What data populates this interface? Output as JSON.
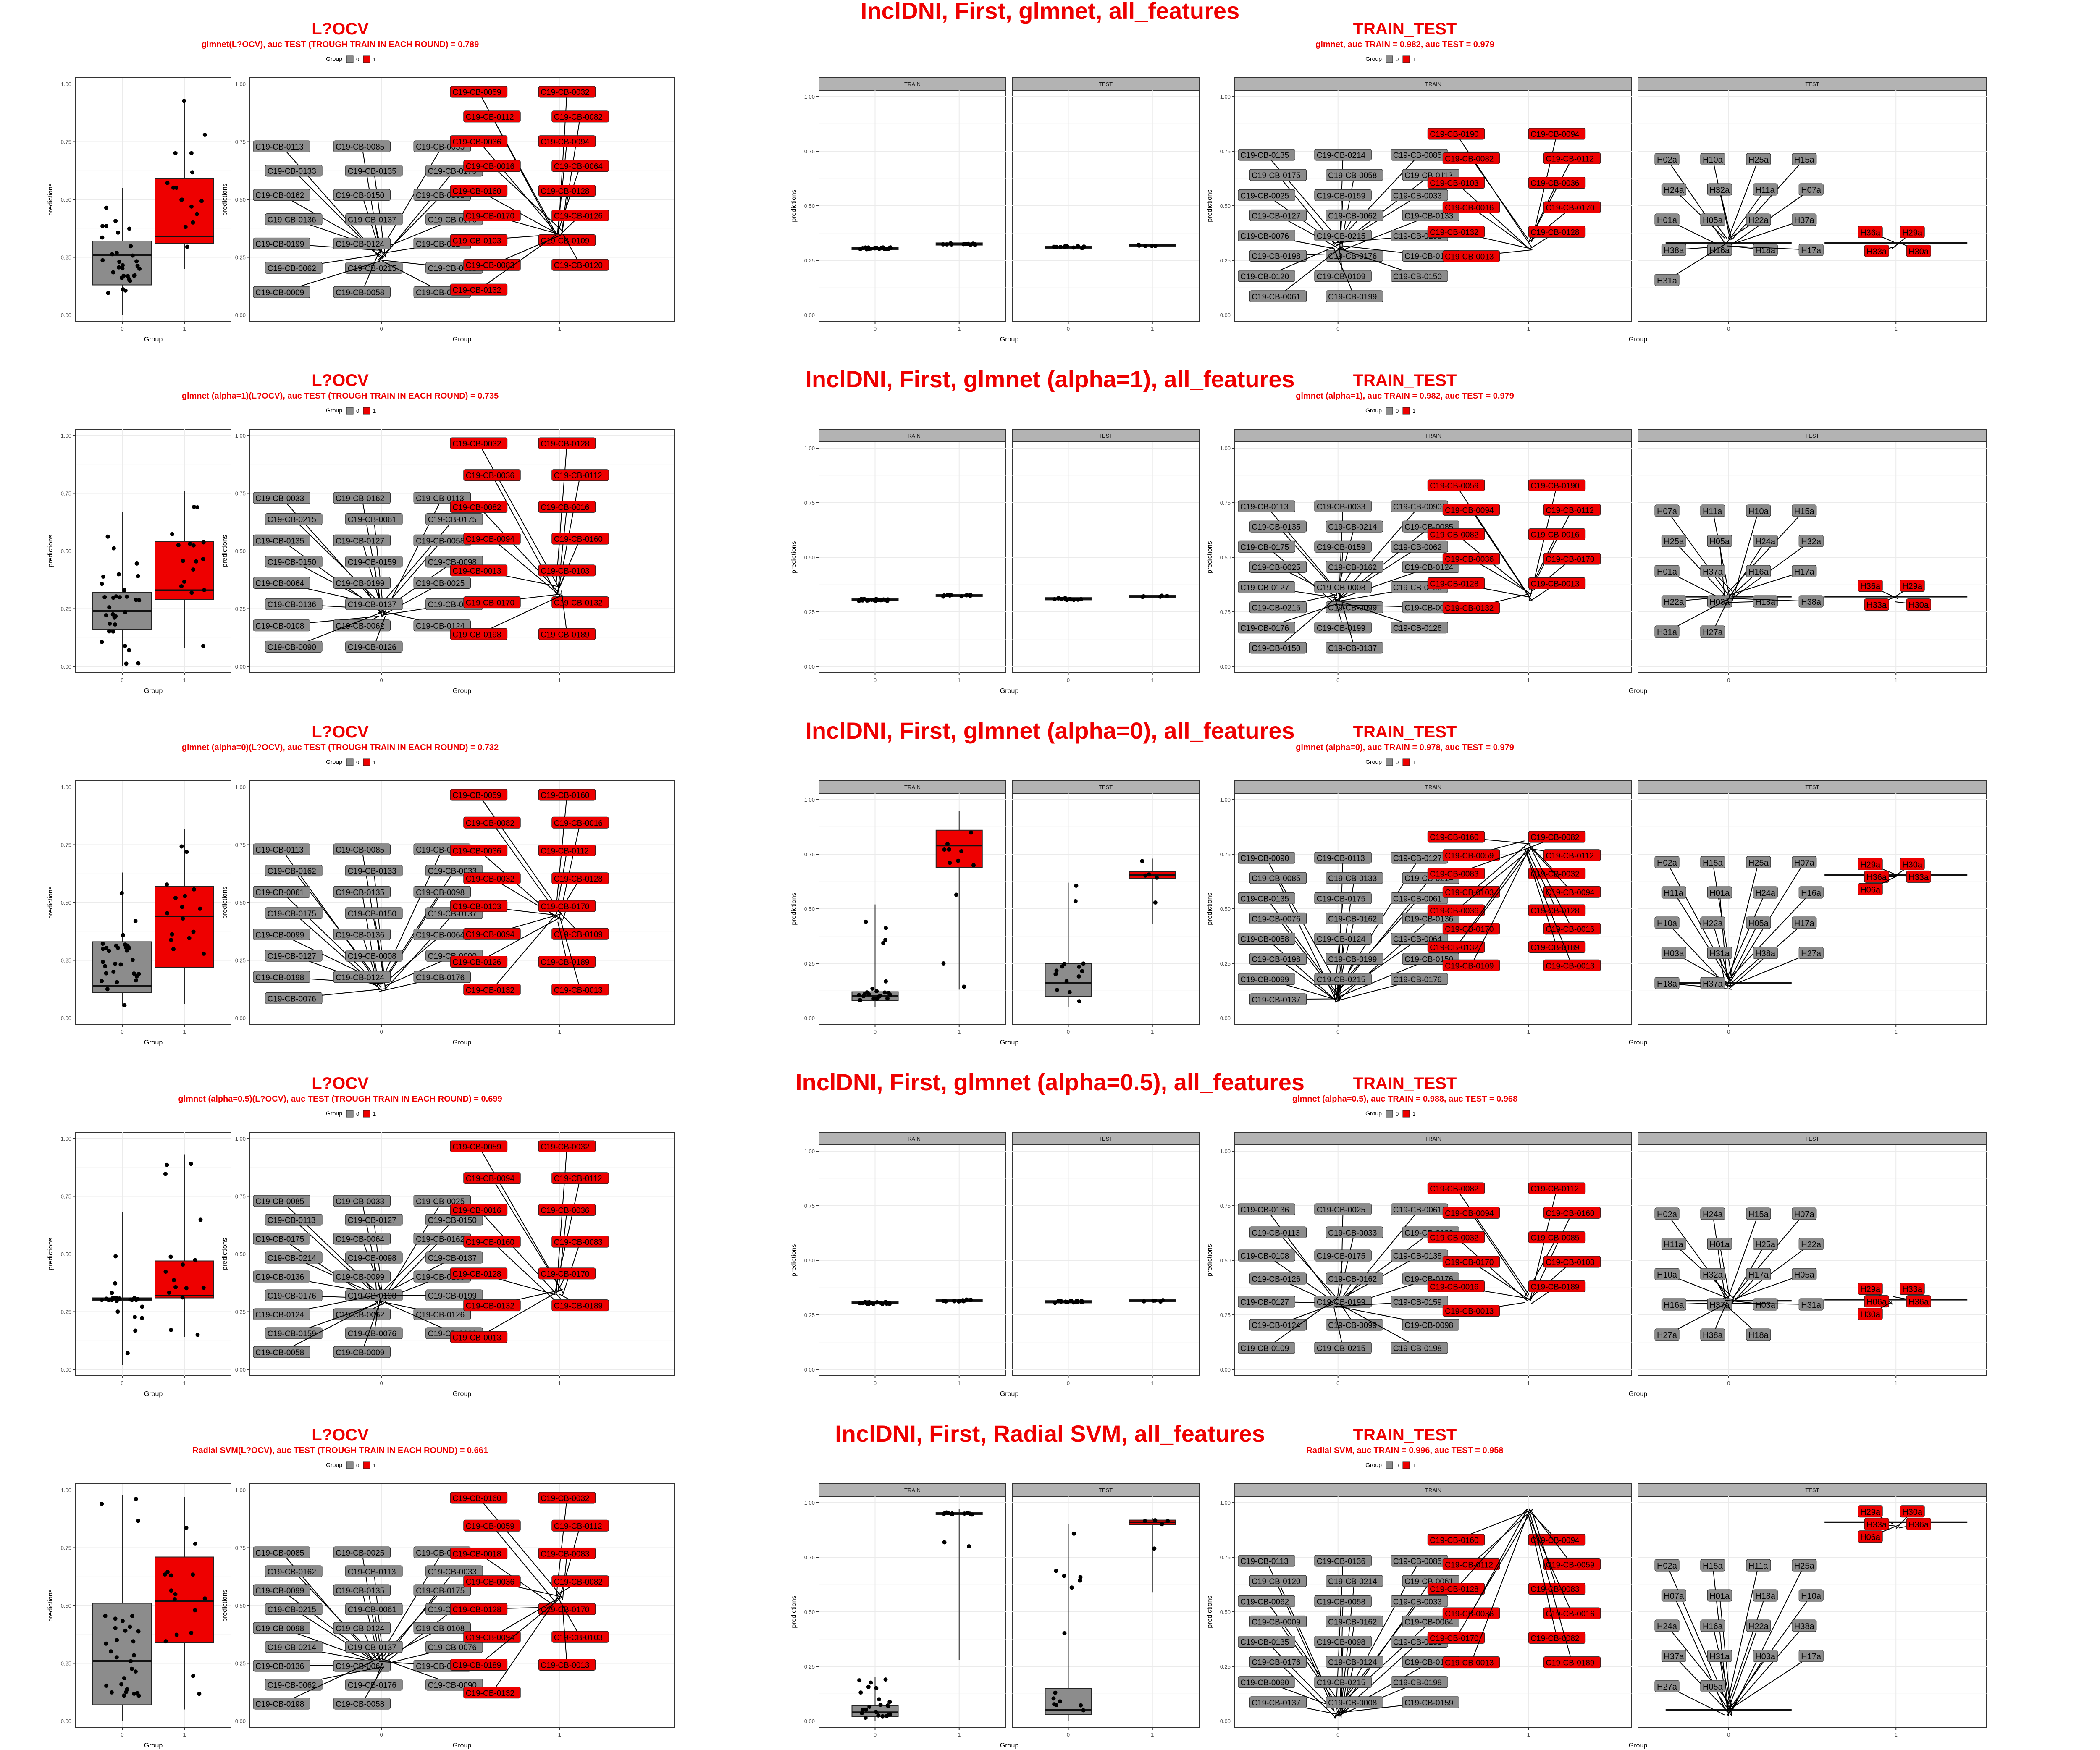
{
  "colors": {
    "g0": "#8c8c8c",
    "g1": "#ee0000",
    "title": "#ee0000",
    "grid": "#ebebeb",
    "strip": "#b3b3b3"
  },
  "legend": {
    "title": "Group",
    "key0": "0",
    "key1": "1"
  },
  "axis": {
    "ylabel": "predictions",
    "xlabel": "Group",
    "yticks": [
      "0.00",
      "0.25",
      "0.50",
      "0.75",
      "1.00"
    ],
    "xticks": [
      "0",
      "1"
    ]
  },
  "strips": {
    "train": "TRAIN",
    "test": "TEST"
  },
  "chart_data": [
    {
      "type": "box",
      "row_title": "InclDNI, First, glmnet, all_features",
      "loocv": {
        "title": "L?OCV",
        "subtitle": "glmnet(L?OCV), auc TEST (TROUGH TRAIN IN EACH ROUND) = 0.789",
        "box0": {
          "q1": 0.13,
          "median": 0.26,
          "q3": 0.32,
          "whisk_lo": 0.0,
          "whisk_hi": 0.55
        },
        "box1": {
          "q1": 0.31,
          "median": 0.34,
          "q3": 0.59,
          "whisk_lo": 0.2,
          "whisk_hi": 0.93
        },
        "labels0": [
          "C19-CB-0113",
          "C19-CB-0085",
          "C19-CB-0033",
          "C19-CB-0133",
          "C19-CB-0135",
          "C19-CB-0175",
          "C19-CB-0162",
          "C19-CB-0150",
          "C19-CB-0098",
          "C19-CB-0136",
          "C19-CB-0137",
          "C19-CB-0176",
          "C19-CB-0199",
          "C19-CB-0124",
          "C19-CB-0127",
          "C19-CB-0062",
          "C19-CB-0215",
          "C19-CB-0008",
          "C19-CB-0009",
          "C19-CB-0058",
          "C19-CB-0076"
        ],
        "labels1": [
          "C19-CB-0059",
          "C19-CB-0032",
          "C19-CB-0112",
          "C19-CB-0082",
          "C19-CB-0036",
          "C19-CB-0094",
          "C19-CB-0016",
          "C19-CB-0064",
          "C19-CB-0160",
          "C19-CB-0128",
          "C19-CB-0170",
          "C19-CB-0126",
          "C19-CB-0103",
          "C19-CB-0109",
          "C19-CB-0083",
          "C19-CB-0120",
          "C19-CB-0132"
        ]
      },
      "tt": {
        "title": "TRAIN_TEST",
        "subtitle": "glmnet, auc TRAIN = 0.982, auc TEST = 0.979",
        "train": {
          "box0": {
            "q1": 0.3,
            "median": 0.305,
            "q3": 0.31
          },
          "box1": {
            "q1": 0.32,
            "median": 0.325,
            "q3": 0.33
          }
        },
        "test": {
          "box0": {
            "q1": 0.305,
            "median": 0.31,
            "q3": 0.315
          },
          "box1": {
            "q1": 0.315,
            "median": 0.32,
            "q3": 0.325
          }
        },
        "train_labels0": [
          "C19-CB-0135",
          "C19-CB-0214",
          "C19-CB-0085",
          "C19-CB-0175",
          "C19-CB-0058",
          "C19-CB-0113",
          "C19-CB-0025",
          "C19-CB-0159",
          "C19-CB-0033",
          "C19-CB-0127",
          "C19-CB-0062",
          "C19-CB-0133",
          "C19-CB-0076",
          "C19-CB-0215",
          "C19-CB-0108",
          "C19-CB-0198",
          "C19-CB-0176",
          "C19-CB-0126",
          "C19-CB-0120",
          "C19-CB-0109",
          "C19-CB-0150",
          "C19-CB-0061",
          "C19-CB-0199"
        ],
        "train_labels1": [
          "C19-CB-0190",
          "C19-CB-0094",
          "C19-CB-0082",
          "C19-CB-0112",
          "C19-CB-0103",
          "C19-CB-0036",
          "C19-CB-0016",
          "C19-CB-0170",
          "C19-CB-0132",
          "C19-CB-0128",
          "C19-CB-0013"
        ],
        "test_labels0": [
          "H02a",
          "H10a",
          "H25a",
          "H15a",
          "H24a",
          "H32a",
          "H11a",
          "H07a",
          "H01a",
          "H05a",
          "H22a",
          "H37a",
          "H38a",
          "H16a",
          "H18a",
          "H17a",
          "H31a"
        ],
        "test_labels1": [
          "H36a",
          "H29a",
          "H33a",
          "H30a"
        ],
        "test_box0": {
          "median": 0.33
        },
        "test_box1": {
          "median": 0.33
        }
      }
    },
    {
      "type": "box",
      "row_title": "InclDNI, First, glmnet (alpha=1), all_features",
      "loocv": {
        "title": "L?OCV",
        "subtitle": "glmnet (alpha=1)(L?OCV), auc TEST (TROUGH TRAIN IN EACH ROUND) = 0.735",
        "box0": {
          "q1": 0.16,
          "median": 0.24,
          "q3": 0.32,
          "whisk_lo": 0.0,
          "whisk_hi": 0.67
        },
        "box1": {
          "q1": 0.29,
          "median": 0.33,
          "q3": 0.54,
          "whisk_lo": 0.08,
          "whisk_hi": 0.76
        },
        "labels0": [
          "C19-CB-0033",
          "C19-CB-0162",
          "C19-CB-0113",
          "C19-CB-0215",
          "C19-CB-0061",
          "C19-CB-0175",
          "C19-CB-0135",
          "C19-CB-0127",
          "C19-CB-0058",
          "C19-CB-0150",
          "C19-CB-0159",
          "C19-CB-0098",
          "C19-CB-0064",
          "C19-CB-0199",
          "C19-CB-0025",
          "C19-CB-0136",
          "C19-CB-0137",
          "C19-CB-0076",
          "C19-CB-0108",
          "C19-CB-0062",
          "C19-CB-0124",
          "C19-CB-0090",
          "C19-CB-0126"
        ],
        "labels1": [
          "C19-CB-0032",
          "C19-CB-0128",
          "C19-CB-0036",
          "C19-CB-0112",
          "C19-CB-0082",
          "C19-CB-0016",
          "C19-CB-0094",
          "C19-CB-0160",
          "C19-CB-0013",
          "C19-CB-0103",
          "C19-CB-0170",
          "C19-CB-0132",
          "C19-CB-0198",
          "C19-CB-0189"
        ]
      },
      "tt": {
        "title": "TRAIN_TEST",
        "subtitle": "glmnet (alpha=1), auc TRAIN = 0.982, auc TEST = 0.979",
        "train": {
          "box0": {
            "q1": 0.3,
            "median": 0.305,
            "q3": 0.31
          },
          "box1": {
            "q1": 0.32,
            "median": 0.325,
            "q3": 0.33
          }
        },
        "test": {
          "box0": {
            "q1": 0.305,
            "median": 0.31,
            "q3": 0.315
          },
          "box1": {
            "q1": 0.315,
            "median": 0.32,
            "q3": 0.325
          }
        },
        "train_labels0": [
          "C19-CB-0113",
          "C19-CB-0033",
          "C19-CB-0090",
          "C19-CB-0135",
          "C19-CB-0214",
          "C19-CB-0085",
          "C19-CB-0175",
          "C19-CB-0159",
          "C19-CB-0062",
          "C19-CB-0025",
          "C19-CB-0162",
          "C19-CB-0124",
          "C19-CB-0127",
          "C19-CB-0008",
          "C19-CB-0198",
          "C19-CB-0215",
          "C19-CB-0099",
          "C19-CB-0064",
          "C19-CB-0176",
          "C19-CB-0199",
          "C19-CB-0126",
          "C19-CB-0150",
          "C19-CB-0137"
        ],
        "train_labels1": [
          "C19-CB-0059",
          "C19-CB-0190",
          "C19-CB-0094",
          "C19-CB-0112",
          "C19-CB-0082",
          "C19-CB-0016",
          "C19-CB-0036",
          "C19-CB-0170",
          "C19-CB-0128",
          "C19-CB-0013",
          "C19-CB-0132"
        ],
        "test_labels0": [
          "H07a",
          "H11a",
          "H10a",
          "H15a",
          "H25a",
          "H05a",
          "H24a",
          "H32a",
          "H01a",
          "H37a",
          "H16a",
          "H17a",
          "H22a",
          "H03a",
          "H18a",
          "H38a",
          "H31a",
          "H27a"
        ],
        "test_labels1": [
          "H36a",
          "H29a",
          "H33a",
          "H30a"
        ],
        "test_box0": {
          "median": 0.32
        },
        "test_box1": {
          "median": 0.32
        }
      }
    },
    {
      "type": "box",
      "row_title": "InclDNI, First, glmnet (alpha=0), all_features",
      "loocv": {
        "title": "L?OCV",
        "subtitle": "glmnet (alpha=0)(L?OCV), auc TEST (TROUGH TRAIN IN EACH ROUND) = 0.732",
        "box0": {
          "q1": 0.11,
          "median": 0.14,
          "q3": 0.33,
          "whisk_lo": 0.05,
          "whisk_hi": 0.63
        },
        "box1": {
          "q1": 0.22,
          "median": 0.44,
          "q3": 0.57,
          "whisk_lo": 0.06,
          "whisk_hi": 0.82
        },
        "labels0": [
          "C19-CB-0113",
          "C19-CB-0085",
          "C19-CB-0025",
          "C19-CB-0162",
          "C19-CB-0133",
          "C19-CB-0033",
          "C19-CB-0061",
          "C19-CB-0135",
          "C19-CB-0098",
          "C19-CB-0175",
          "C19-CB-0150",
          "C19-CB-0137",
          "C19-CB-0099",
          "C19-CB-0136",
          "C19-CB-0064",
          "C19-CB-0127",
          "C19-CB-0008",
          "C19-CB-0090",
          "C19-CB-0198",
          "C19-CB-0124",
          "C19-CB-0176",
          "C19-CB-0076"
        ],
        "labels1": [
          "C19-CB-0059",
          "C19-CB-0160",
          "C19-CB-0082",
          "C19-CB-0016",
          "C19-CB-0036",
          "C19-CB-0112",
          "C19-CB-0032",
          "C19-CB-0128",
          "C19-CB-0103",
          "C19-CB-0170",
          "C19-CB-0094",
          "C19-CB-0109",
          "C19-CB-0126",
          "C19-CB-0189",
          "C19-CB-0132",
          "C19-CB-0013"
        ]
      },
      "tt": {
        "title": "TRAIN_TEST",
        "subtitle": "glmnet (alpha=0), auc TRAIN = 0.978, auc TEST = 0.979",
        "train": {
          "box0": {
            "q1": 0.08,
            "median": 0.1,
            "q3": 0.12,
            "whisk_lo": 0.05,
            "whisk_hi": 0.52
          },
          "box1": {
            "q1": 0.69,
            "median": 0.79,
            "q3": 0.86,
            "whisk_lo": 0.13,
            "whisk_hi": 0.95
          }
        },
        "test": {
          "box0": {
            "q1": 0.1,
            "median": 0.16,
            "q3": 0.25,
            "whisk_lo": 0.05,
            "whisk_hi": 0.62
          },
          "box1": {
            "q1": 0.64,
            "median": 0.655,
            "q3": 0.67,
            "whisk_lo": 0.43,
            "whisk_hi": 0.73
          }
        },
        "train_labels0": [
          "C19-CB-0090",
          "C19-CB-0113",
          "C19-CB-0127",
          "C19-CB-0085",
          "C19-CB-0133",
          "C19-CB-0214",
          "C19-CB-0135",
          "C19-CB-0175",
          "C19-CB-0061",
          "C19-CB-0076",
          "C19-CB-0162",
          "C19-CB-0136",
          "C19-CB-0058",
          "C19-CB-0124",
          "C19-CB-0064",
          "C19-CB-0198",
          "C19-CB-0199",
          "C19-CB-0150",
          "C19-CB-0099",
          "C19-CB-0215",
          "C19-CB-0176",
          "C19-CB-0137"
        ],
        "train_labels1": [
          "C19-CB-0160",
          "C19-CB-0082",
          "C19-CB-0059",
          "C19-CB-0112",
          "C19-CB-0083",
          "C19-CB-0032",
          "C19-CB-0103",
          "C19-CB-0094",
          "C19-CB-0036",
          "C19-CB-0128",
          "C19-CB-0170",
          "C19-CB-0016",
          "C19-CB-0132",
          "C19-CB-0189",
          "C19-CB-0109",
          "C19-CB-0013"
        ],
        "test_labels0": [
          "H02a",
          "H15a",
          "H25a",
          "H07a",
          "H11a",
          "H01a",
          "H24a",
          "H16a",
          "H10a",
          "H22a",
          "H05a",
          "H17a",
          "H03a",
          "H31a",
          "H38a",
          "H27a",
          "H18a",
          "H37a"
        ],
        "test_labels1": [
          "H29a",
          "H30a",
          "H36a",
          "H33a",
          "H06a"
        ]
      }
    },
    {
      "type": "box",
      "row_title": "InclDNI, First, glmnet (alpha=0.5), all_features",
      "loocv": {
        "title": "L?OCV",
        "subtitle": "glmnet (alpha=0.5)(L?OCV), auc TEST (TROUGH TRAIN IN EACH ROUND) = 0.699",
        "box0": {
          "q1": 0.3,
          "median": 0.305,
          "q3": 0.31,
          "whisk_lo": 0.02,
          "whisk_hi": 0.68
        },
        "box1": {
          "q1": 0.31,
          "median": 0.32,
          "q3": 0.47,
          "whisk_lo": 0.14,
          "whisk_hi": 0.93
        },
        "labels0": [
          "C19-CB-0085",
          "C19-CB-0033",
          "C19-CB-0025",
          "C19-CB-0113",
          "C19-CB-0127",
          "C19-CB-0150",
          "C19-CB-0175",
          "C19-CB-0064",
          "C19-CB-0162",
          "C19-CB-0214",
          "C19-CB-0098",
          "C19-CB-0137",
          "C19-CB-0136",
          "C19-CB-0099",
          "C19-CB-0108",
          "C19-CB-0176",
          "C19-CB-0198",
          "C19-CB-0199",
          "C19-CB-0124",
          "C19-CB-0062",
          "C19-CB-0126",
          "C19-CB-0159",
          "C19-CB-0076",
          "C19-CB-0008",
          "C19-CB-0058",
          "C19-CB-0009"
        ],
        "labels1": [
          "C19-CB-0059",
          "C19-CB-0032",
          "C19-CB-0094",
          "C19-CB-0112",
          "C19-CB-0016",
          "C19-CB-0036",
          "C19-CB-0160",
          "C19-CB-0083",
          "C19-CB-0128",
          "C19-CB-0170",
          "C19-CB-0132",
          "C19-CB-0189",
          "C19-CB-0013"
        ]
      },
      "tt": {
        "title": "TRAIN_TEST",
        "subtitle": "glmnet (alpha=0.5), auc TRAIN = 0.988, auc TEST = 0.968",
        "train": {
          "box0": {
            "q1": 0.3,
            "median": 0.305,
            "q3": 0.31
          },
          "box1": {
            "q1": 0.31,
            "median": 0.315,
            "q3": 0.32
          }
        },
        "test": {
          "box0": {
            "q1": 0.305,
            "median": 0.31,
            "q3": 0.315
          },
          "box1": {
            "q1": 0.31,
            "median": 0.315,
            "q3": 0.32
          }
        },
        "train_labels0": [
          "C19-CB-0136",
          "C19-CB-0025",
          "C19-CB-0061",
          "C19-CB-0113",
          "C19-CB-0033",
          "C19-CB-0133",
          "C19-CB-0108",
          "C19-CB-0175",
          "C19-CB-0135",
          "C19-CB-0126",
          "C19-CB-0162",
          "C19-CB-0176",
          "C19-CB-0127",
          "C19-CB-0199",
          "C19-CB-0159",
          "C19-CB-0124",
          "C19-CB-0099",
          "C19-CB-0098",
          "C19-CB-0109",
          "C19-CB-0215",
          "C19-CB-0198"
        ],
        "train_labels1": [
          "C19-CB-0082",
          "C19-CB-0112",
          "C19-CB-0094",
          "C19-CB-0160",
          "C19-CB-0032",
          "C19-CB-0085",
          "C19-CB-0170",
          "C19-CB-0103",
          "C19-CB-0016",
          "C19-CB-0189",
          "C19-CB-0013"
        ],
        "test_labels0": [
          "H02a",
          "H24a",
          "H15a",
          "H07a",
          "H11a",
          "H01a",
          "H25a",
          "H22a",
          "H10a",
          "H32a",
          "H17a",
          "H05a",
          "H16a",
          "H37a",
          "H03a",
          "H31a",
          "H27a",
          "H38a",
          "H18a"
        ],
        "test_labels1": [
          "H29a",
          "H33a",
          "H06a",
          "H36a",
          "H30a"
        ],
        "test_box0": {
          "median": 0.315
        },
        "test_box1": {
          "median": 0.32
        }
      }
    },
    {
      "type": "box",
      "row_title": "InclDNI, First, Radial SVM, all_features",
      "loocv": {
        "title": "L?OCV",
        "subtitle": "Radial SVM(L?OCV), auc TEST (TROUGH TRAIN IN EACH ROUND) = 0.661",
        "box0": {
          "q1": 0.07,
          "median": 0.26,
          "q3": 0.51,
          "whisk_lo": 0.0,
          "whisk_hi": 0.98
        },
        "box1": {
          "q1": 0.34,
          "median": 0.52,
          "q3": 0.71,
          "whisk_lo": 0.05,
          "whisk_hi": 0.97
        },
        "labels0": [
          "C19-CB-0085",
          "C19-CB-0025",
          "C19-CB-0133",
          "C19-CB-0162",
          "C19-CB-0113",
          "C19-CB-0033",
          "C19-CB-0099",
          "C19-CB-0135",
          "C19-CB-0175",
          "C19-CB-0215",
          "C19-CB-0061",
          "C19-CB-0126",
          "C19-CB-0098",
          "C19-CB-0124",
          "C19-CB-0108",
          "C19-CB-0214",
          "C19-CB-0137",
          "C19-CB-0076",
          "C19-CB-0136",
          "C19-CB-0064",
          "C19-CB-0008",
          "C19-CB-0062",
          "C19-CB-0176",
          "C19-CB-0090",
          "C19-CB-0198",
          "C19-CB-0058"
        ],
        "labels1": [
          "C19-CB-0160",
          "C19-CB-0032",
          "C19-CB-0059",
          "C19-CB-0112",
          "C19-CB-0018",
          "C19-CB-0083",
          "C19-CB-0036",
          "C19-CB-0082",
          "C19-CB-0128",
          "C19-CB-0170",
          "C19-CB-0094",
          "C19-CB-0103",
          "C19-CB-0189",
          "C19-CB-0013",
          "C19-CB-0132"
        ]
      },
      "tt": {
        "title": "TRAIN_TEST",
        "subtitle": "Radial SVM, auc TRAIN = 0.996, auc TEST = 0.958",
        "train": {
          "box0": {
            "q1": 0.02,
            "median": 0.04,
            "q3": 0.07,
            "whisk_lo": 0.0,
            "whisk_hi": 0.2
          },
          "box1": {
            "q1": 0.945,
            "median": 0.95,
            "q3": 0.955,
            "whisk_lo": 0.28,
            "whisk_hi": 0.97
          }
        },
        "test": {
          "box0": {
            "q1": 0.03,
            "median": 0.05,
            "q3": 0.15,
            "whisk_lo": 0.0,
            "whisk_hi": 0.9
          },
          "box1": {
            "q1": 0.9,
            "median": 0.91,
            "q3": 0.92,
            "whisk_lo": 0.59,
            "whisk_hi": 0.93
          }
        },
        "train_labels0": [
          "C19-CB-0113",
          "C19-CB-0136",
          "C19-CB-0085",
          "C19-CB-0120",
          "C19-CB-0214",
          "C19-CB-0061",
          "C19-CB-0062",
          "C19-CB-0058",
          "C19-CB-0033",
          "C19-CB-0009",
          "C19-CB-0162",
          "C19-CB-0064",
          "C19-CB-0135",
          "C19-CB-0098",
          "C19-CB-0131",
          "C19-CB-0176",
          "C19-CB-0124",
          "C19-CB-0199",
          "C19-CB-0090",
          "C19-CB-0215",
          "C19-CB-0198",
          "C19-CB-0137",
          "C19-CB-0008",
          "C19-CB-0159"
        ],
        "train_labels1": [
          "C19-CB-0160",
          "C19-CB-0094",
          "C19-CB-0112",
          "C19-CB-0059",
          "C19-CB-0128",
          "C19-CB-0083",
          "C19-CB-0036",
          "C19-CB-0016",
          "C19-CB-0170",
          "C19-CB-0082",
          "C19-CB-0013",
          "C19-CB-0189"
        ],
        "test_labels0": [
          "H02a",
          "H15a",
          "H11a",
          "H25a",
          "H07a",
          "H01a",
          "H18a",
          "H10a",
          "H24a",
          "H16a",
          "H22a",
          "H38a",
          "H37a",
          "H31a",
          "H03a",
          "H17a",
          "H27a",
          "H05a"
        ],
        "test_labels1": [
          "H29a",
          "H30a",
          "H33a",
          "H36a",
          "H06a"
        ]
      }
    }
  ]
}
